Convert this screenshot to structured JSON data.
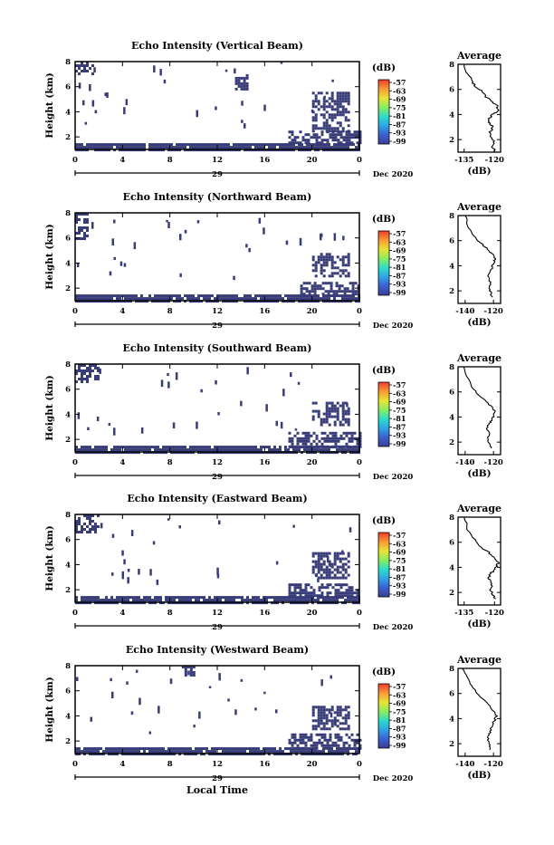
{
  "footer_label": "Local Time",
  "colors": {
    "echo_fill": "#383c78",
    "colorbar_stops": [
      "#3a3f93",
      "#3c5fd0",
      "#2ea5e6",
      "#2fdcc8",
      "#8cec5c",
      "#e8e33a",
      "#f99a33",
      "#ee3b2e"
    ]
  },
  "panels": [
    {
      "title": "Echo Intensity (Vertical Beam)",
      "ylabel": "Height (km)",
      "yticks": [
        "8",
        "6",
        "4",
        "2"
      ],
      "xticks": [
        "0",
        "4",
        "8",
        "12",
        "16",
        "20",
        "0"
      ],
      "date_day": "29",
      "date_label": "Dec 2020",
      "unit": "(dB)",
      "colorbar_ticks": [
        "-57",
        "-63",
        "-69",
        "-75",
        "-81",
        "-87",
        "-93",
        "-99"
      ],
      "avg_title": "Average",
      "avg_xticks": [
        "-135",
        "-120"
      ],
      "avg_yticks": [
        "8",
        "6",
        "4",
        "2"
      ],
      "avg_xlabel": "(dB)"
    },
    {
      "title": "Echo Intensity (Northward Beam)",
      "ylabel": "Height (km)",
      "yticks": [
        "8",
        "6",
        "4",
        "2"
      ],
      "xticks": [
        "0",
        "4",
        "8",
        "12",
        "16",
        "20",
        "0"
      ],
      "date_day": "29",
      "date_label": "Dec 2020",
      "unit": "(dB)",
      "colorbar_ticks": [
        "-57",
        "-63",
        "-69",
        "-75",
        "-81",
        "-87",
        "-93",
        "-99"
      ],
      "avg_title": "Average",
      "avg_xticks": [
        "-140",
        "-120"
      ],
      "avg_yticks": [
        "8",
        "6",
        "4",
        "2"
      ],
      "avg_xlabel": "(dB)"
    },
    {
      "title": "Echo Intensity (Southward Beam)",
      "ylabel": "Height (km)",
      "yticks": [
        "8",
        "6",
        "4",
        "2"
      ],
      "xticks": [
        "0",
        "4",
        "8",
        "12",
        "16",
        "20",
        "0"
      ],
      "date_day": "29",
      "date_label": "Dec 2020",
      "unit": "(dB)",
      "colorbar_ticks": [
        "-57",
        "-63",
        "-69",
        "-75",
        "-81",
        "-87",
        "-93",
        "-99"
      ],
      "avg_title": "Average",
      "avg_xticks": [
        "-140",
        "-120"
      ],
      "avg_yticks": [
        "8",
        "6",
        "4",
        "2"
      ],
      "avg_xlabel": "(dB)"
    },
    {
      "title": "Echo Intensity (Eastward Beam)",
      "ylabel": "Height (km)",
      "yticks": [
        "8",
        "6",
        "4",
        "2"
      ],
      "xticks": [
        "0",
        "4",
        "8",
        "12",
        "16",
        "20",
        "0"
      ],
      "date_day": "29",
      "date_label": "Dec 2020",
      "unit": "(dB)",
      "colorbar_ticks": [
        "-57",
        "-63",
        "-69",
        "-75",
        "-81",
        "-87",
        "-93",
        "-99"
      ],
      "avg_title": "Average",
      "avg_xticks": [
        "-135",
        "-120"
      ],
      "avg_yticks": [
        "8",
        "6",
        "4",
        "2"
      ],
      "avg_xlabel": "(dB)"
    },
    {
      "title": "Echo Intensity (Westward Beam)",
      "ylabel": "Height (km)",
      "yticks": [
        "8",
        "6",
        "4",
        "2"
      ],
      "xticks": [
        "0",
        "4",
        "8",
        "12",
        "16",
        "20",
        "0"
      ],
      "date_day": "29",
      "date_label": "Dec 2020",
      "unit": "(dB)",
      "colorbar_ticks": [
        "-57",
        "-63",
        "-69",
        "-75",
        "-81",
        "-87",
        "-93",
        "-99"
      ],
      "avg_title": "Average",
      "avg_xticks": [
        "-140",
        "-120"
      ],
      "avg_yticks": [
        "8",
        "6",
        "4",
        "2"
      ],
      "avg_xlabel": "(dB)"
    }
  ],
  "chart_data": [
    {
      "type": "heatmap",
      "title": "Echo Intensity (Vertical Beam)",
      "xlabel": "",
      "ylabel": "Height (km)",
      "xlim": [
        0,
        24
      ],
      "ylim": [
        1,
        8
      ],
      "colorbar_label": "(dB)",
      "colorbar_range": [
        -99,
        -57
      ],
      "echo_regions": [
        {
          "x": [
            0,
            24
          ],
          "y": [
            1.0,
            1.5
          ],
          "value": -97
        },
        {
          "x": [
            18,
            24
          ],
          "y": [
            1.5,
            2.5
          ],
          "value": -96
        },
        {
          "x": [
            20,
            23
          ],
          "y": [
            2.5,
            5.6
          ],
          "value": -96
        },
        {
          "x": [
            0,
            1.5
          ],
          "y": [
            7.0,
            8.0
          ],
          "value": -97
        },
        {
          "x": [
            13.5,
            14.5
          ],
          "y": [
            5.8,
            7.0
          ],
          "value": -98
        }
      ]
    },
    {
      "type": "line",
      "title": "Average",
      "xlabel": "(dB)",
      "xlim": [
        -138,
        -117
      ],
      "ylim": [
        1,
        8
      ],
      "x": [
        -119.5,
        -121,
        -120.5,
        -121.5,
        -122,
        -121,
        -122.5,
        -123,
        -121.5,
        -120,
        -118,
        -119,
        -121,
        -124,
        -126,
        -129,
        -131,
        -133,
        -135
      ],
      "y": [
        1.0,
        1.4,
        1.8,
        2.2,
        2.6,
        3.0,
        3.3,
        3.6,
        3.9,
        4.1,
        4.4,
        4.7,
        5.0,
        5.4,
        5.8,
        6.2,
        6.6,
        7.2,
        8.0
      ]
    },
    {
      "type": "heatmap",
      "title": "Echo Intensity (Northward Beam)",
      "ylabel": "Height (km)",
      "xlim": [
        0,
        24
      ],
      "ylim": [
        1,
        8
      ],
      "colorbar_label": "(dB)",
      "colorbar_range": [
        -99,
        -57
      ],
      "echo_regions": [
        {
          "x": [
            0,
            24
          ],
          "y": [
            1.0,
            1.5
          ],
          "value": -97
        },
        {
          "x": [
            19,
            24
          ],
          "y": [
            1.5,
            2.5
          ],
          "value": -96
        },
        {
          "x": [
            20,
            23
          ],
          "y": [
            3.0,
            4.8
          ],
          "value": -96
        },
        {
          "x": [
            0,
            1
          ],
          "y": [
            6.0,
            8.0
          ],
          "value": -98
        }
      ]
    },
    {
      "type": "line",
      "title": "Average",
      "xlabel": "(dB)",
      "xlim": [
        -145,
        -115
      ],
      "ylim": [
        1,
        8
      ],
      "x": [
        -121,
        -122,
        -123,
        -122,
        -124,
        -122,
        -121,
        -120,
        -119,
        -120,
        -123,
        -127,
        -131,
        -135,
        -138,
        -140
      ],
      "y": [
        1.5,
        1.9,
        2.3,
        2.7,
        3.1,
        3.5,
        3.9,
        4.2,
        4.5,
        4.8,
        5.2,
        5.6,
        6.0,
        6.5,
        7.2,
        8.0
      ]
    },
    {
      "type": "heatmap",
      "title": "Echo Intensity (Southward Beam)",
      "ylabel": "Height (km)",
      "xlim": [
        0,
        24
      ],
      "ylim": [
        1,
        8
      ],
      "colorbar_label": "(dB)",
      "colorbar_range": [
        -99,
        -57
      ],
      "echo_regions": [
        {
          "x": [
            0,
            24
          ],
          "y": [
            1.0,
            1.5
          ],
          "value": -97
        },
        {
          "x": [
            18,
            24
          ],
          "y": [
            1.5,
            2.6
          ],
          "value": -96
        },
        {
          "x": [
            20,
            23
          ],
          "y": [
            3.2,
            5.0
          ],
          "value": -96
        },
        {
          "x": [
            0,
            2
          ],
          "y": [
            6.5,
            8.0
          ],
          "value": -98
        }
      ]
    },
    {
      "type": "line",
      "title": "Average",
      "xlabel": "(dB)",
      "xlim": [
        -145,
        -115
      ],
      "ylim": [
        1,
        8
      ],
      "x": [
        -122,
        -123,
        -124,
        -123,
        -125,
        -123,
        -121,
        -120,
        -119,
        -121,
        -125,
        -130,
        -134,
        -138,
        -141
      ],
      "y": [
        1.5,
        1.9,
        2.3,
        2.7,
        3.1,
        3.5,
        3.8,
        4.1,
        4.4,
        4.8,
        5.2,
        5.7,
        6.2,
        7.0,
        8.0
      ]
    },
    {
      "type": "heatmap",
      "title": "Echo Intensity (Eastward Beam)",
      "ylabel": "Height (km)",
      "xlim": [
        0,
        24
      ],
      "ylim": [
        1,
        8
      ],
      "colorbar_label": "(dB)",
      "colorbar_range": [
        -99,
        -57
      ],
      "echo_regions": [
        {
          "x": [
            0,
            24
          ],
          "y": [
            1.0,
            1.5
          ],
          "value": -97
        },
        {
          "x": [
            18,
            24
          ],
          "y": [
            1.5,
            2.5
          ],
          "value": -96
        },
        {
          "x": [
            20,
            23
          ],
          "y": [
            3.0,
            5.0
          ],
          "value": -96
        },
        {
          "x": [
            0,
            2
          ],
          "y": [
            6.5,
            8.0
          ],
          "value": -98
        }
      ]
    },
    {
      "type": "line",
      "title": "Average",
      "xlabel": "(dB)",
      "xlim": [
        -138,
        -117
      ],
      "ylim": [
        1,
        8
      ],
      "x": [
        -120,
        -121,
        -122,
        -121,
        -123,
        -122,
        -120,
        -119,
        -118,
        -120,
        -123,
        -127,
        -130,
        -133,
        -135
      ],
      "y": [
        1.5,
        1.9,
        2.3,
        2.7,
        3.1,
        3.5,
        3.8,
        4.1,
        4.4,
        4.8,
        5.2,
        5.7,
        6.2,
        7.0,
        8.0
      ]
    },
    {
      "type": "heatmap",
      "title": "Echo Intensity (Westward Beam)",
      "ylabel": "Height (km)",
      "xlim": [
        0,
        24
      ],
      "ylim": [
        1,
        8
      ],
      "colorbar_label": "(dB)",
      "colorbar_range": [
        -99,
        -57
      ],
      "echo_regions": [
        {
          "x": [
            0,
            24
          ],
          "y": [
            1.0,
            1.5
          ],
          "value": -97
        },
        {
          "x": [
            18,
            24
          ],
          "y": [
            1.5,
            2.6
          ],
          "value": -96
        },
        {
          "x": [
            20,
            23
          ],
          "y": [
            3.0,
            4.8
          ],
          "value": -96
        },
        {
          "x": [
            9,
            10
          ],
          "y": [
            7.2,
            8.0
          ],
          "value": -98
        }
      ]
    },
    {
      "type": "line",
      "title": "Average",
      "xlabel": "(dB)",
      "xlim": [
        -145,
        -115
      ],
      "ylim": [
        1,
        8
      ],
      "x": [
        -122,
        -123,
        -124,
        -123,
        -122,
        -121,
        -119,
        -118,
        -120,
        -123,
        -127,
        -131,
        -135,
        -139,
        -142
      ],
      "y": [
        1.5,
        1.9,
        2.3,
        2.7,
        3.1,
        3.5,
        3.9,
        4.2,
        4.6,
        5.0,
        5.5,
        6.0,
        6.6,
        7.3,
        8.0
      ]
    }
  ]
}
